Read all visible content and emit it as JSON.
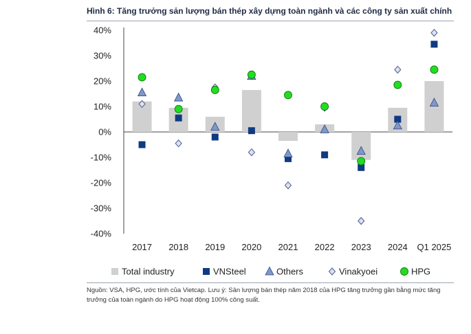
{
  "title": "Hình 6: Tăng trưởng sản lượng bán thép xây dựng toàn ngành và các công ty sản xuất chính",
  "note": "Nguồn: VSA, HPG, ước tính của Vietcap. Lưu ý: Sản lượng bán thép năm 2018 của HPG tăng trưởng gần bằng mức tăng trưởng của toàn ngành do HPG hoạt động 100% công suất.",
  "chart_data": {
    "type": "bar",
    "categories": [
      "2017",
      "2018",
      "2019",
      "2020",
      "2021",
      "2022",
      "2023",
      "2024",
      "Q1 2025"
    ],
    "ylim": [
      -40,
      40
    ],
    "yticks": [
      "40%",
      "30%",
      "20%",
      "10%",
      "0%",
      "-10%",
      "-20%",
      "-30%",
      "-40%"
    ],
    "ytick_values": [
      40,
      30,
      20,
      10,
      0,
      -10,
      -20,
      -30,
      -40
    ],
    "legend_position": "bottom",
    "series": [
      {
        "name": "Total industry",
        "kind": "bar",
        "color": "#d0d0d0",
        "values": [
          12,
          9.5,
          6,
          16.5,
          -3.5,
          3,
          -11,
          9.5,
          20
        ]
      },
      {
        "name": "VNSteel",
        "kind": "square",
        "color": "#0f3b82",
        "values": [
          -5,
          5.5,
          -2,
          0.5,
          -10.5,
          -9,
          -14,
          5,
          34.5
        ]
      },
      {
        "name": "Others",
        "kind": "triangle",
        "color": "#7f97c9",
        "values": [
          15.5,
          13.5,
          2,
          22,
          -8.5,
          1,
          -7.5,
          2.5,
          11.5
        ]
      },
      {
        "name": "Vinakyoei",
        "kind": "diamond",
        "color": "#dde2f2",
        "values": [
          11,
          -4.5,
          17.5,
          -8,
          -21,
          9.5,
          -35,
          24.5,
          39
        ]
      },
      {
        "name": "HPG",
        "kind": "circle",
        "color": "#22dd22",
        "values": [
          21.5,
          9,
          16.5,
          22.5,
          14.5,
          10,
          -11.5,
          18.5,
          24.5
        ]
      }
    ]
  }
}
